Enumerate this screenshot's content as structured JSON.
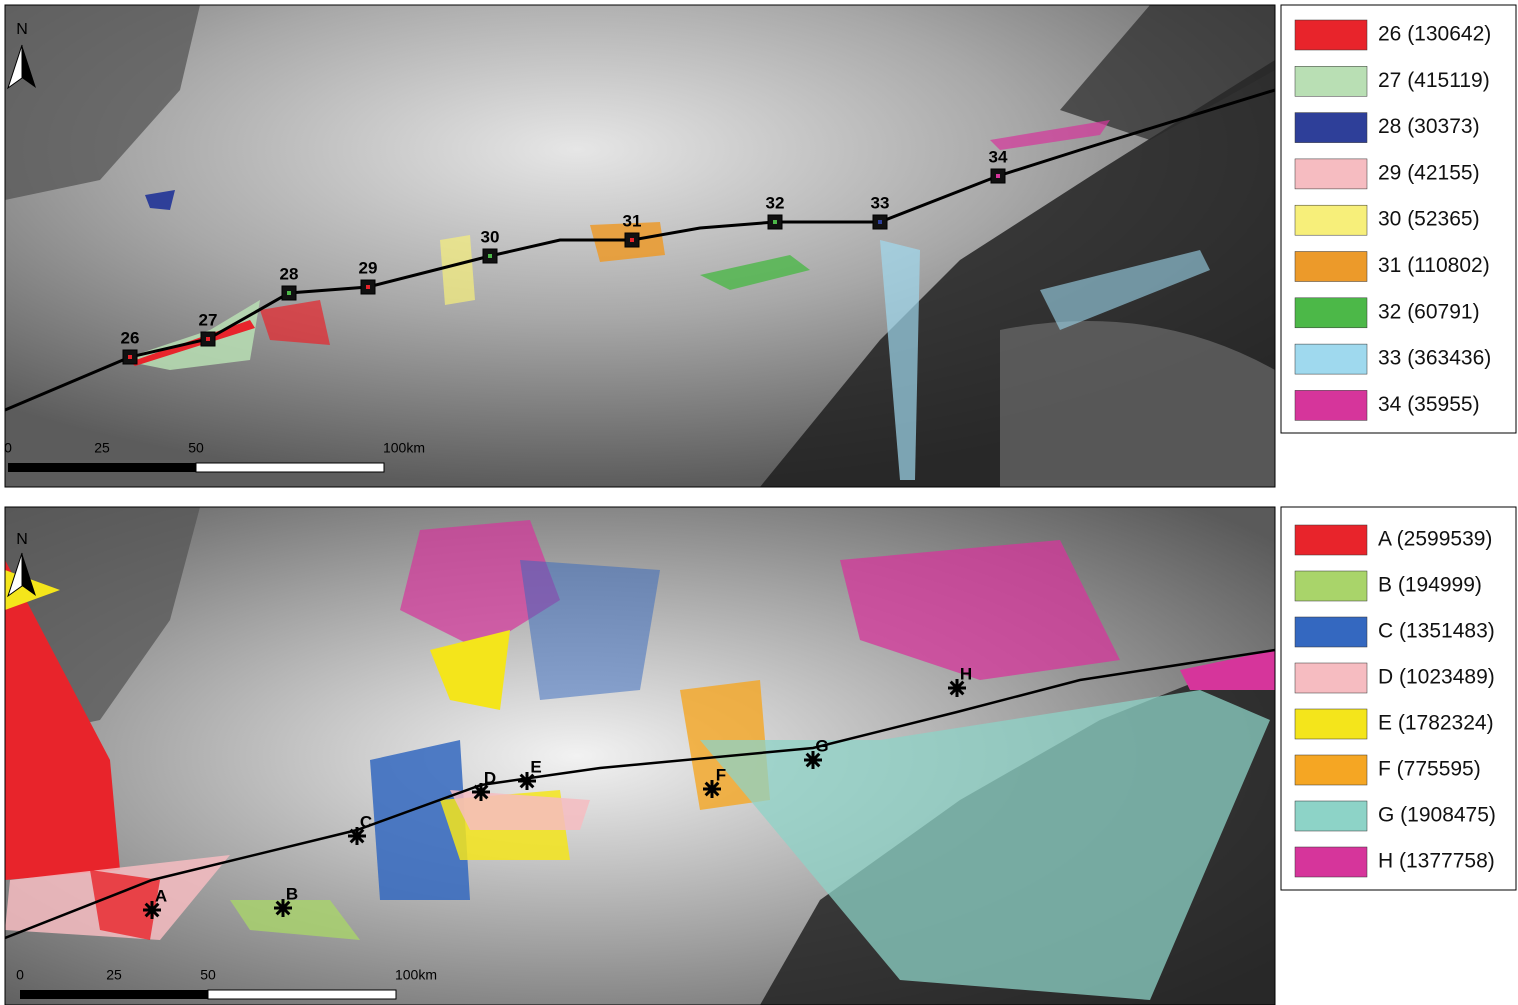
{
  "top_panel": {
    "north": "N",
    "markers": [
      "26",
      "27",
      "28",
      "29",
      "30",
      "31",
      "32",
      "33",
      "34"
    ],
    "scale_labels": [
      "0",
      "25",
      "50",
      "100km"
    ],
    "legend": [
      {
        "label": "26 (130642)",
        "color": "#e8242b"
      },
      {
        "label": "27 (415119)",
        "color": "#b9dfb4"
      },
      {
        "label": "28 (30373)",
        "color": "#2e3f99"
      },
      {
        "label": "29 (42155)",
        "color": "#f6bcc1"
      },
      {
        "label": "30 (52365)",
        "color": "#f7ef7a"
      },
      {
        "label": "31 (110802)",
        "color": "#ec9a2a"
      },
      {
        "label": "32 (60791)",
        "color": "#4cb848"
      },
      {
        "label": "33 (363436)",
        "color": "#9fd9ee"
      },
      {
        "label": "34 (35955)",
        "color": "#d6359b"
      }
    ]
  },
  "bottom_panel": {
    "north": "N",
    "markers": [
      "A",
      "B",
      "C",
      "D",
      "E",
      "F",
      "G",
      "H"
    ],
    "scale_labels": [
      "0",
      "25",
      "50",
      "100km"
    ],
    "legend": [
      {
        "label": "A (2599539)",
        "color": "#e8242b"
      },
      {
        "label": "B (194999)",
        "color": "#a9d46a"
      },
      {
        "label": "C (1351483)",
        "color": "#3468c0"
      },
      {
        "label": "D (1023489)",
        "color": "#f6bcc1"
      },
      {
        "label": "E (1782324)",
        "color": "#f4e51b"
      },
      {
        "label": "F (775595)",
        "color": "#f5a623"
      },
      {
        "label": "G (1908475)",
        "color": "#8dd3c7"
      },
      {
        "label": "H (1377758)",
        "color": "#d6359b"
      }
    ]
  }
}
